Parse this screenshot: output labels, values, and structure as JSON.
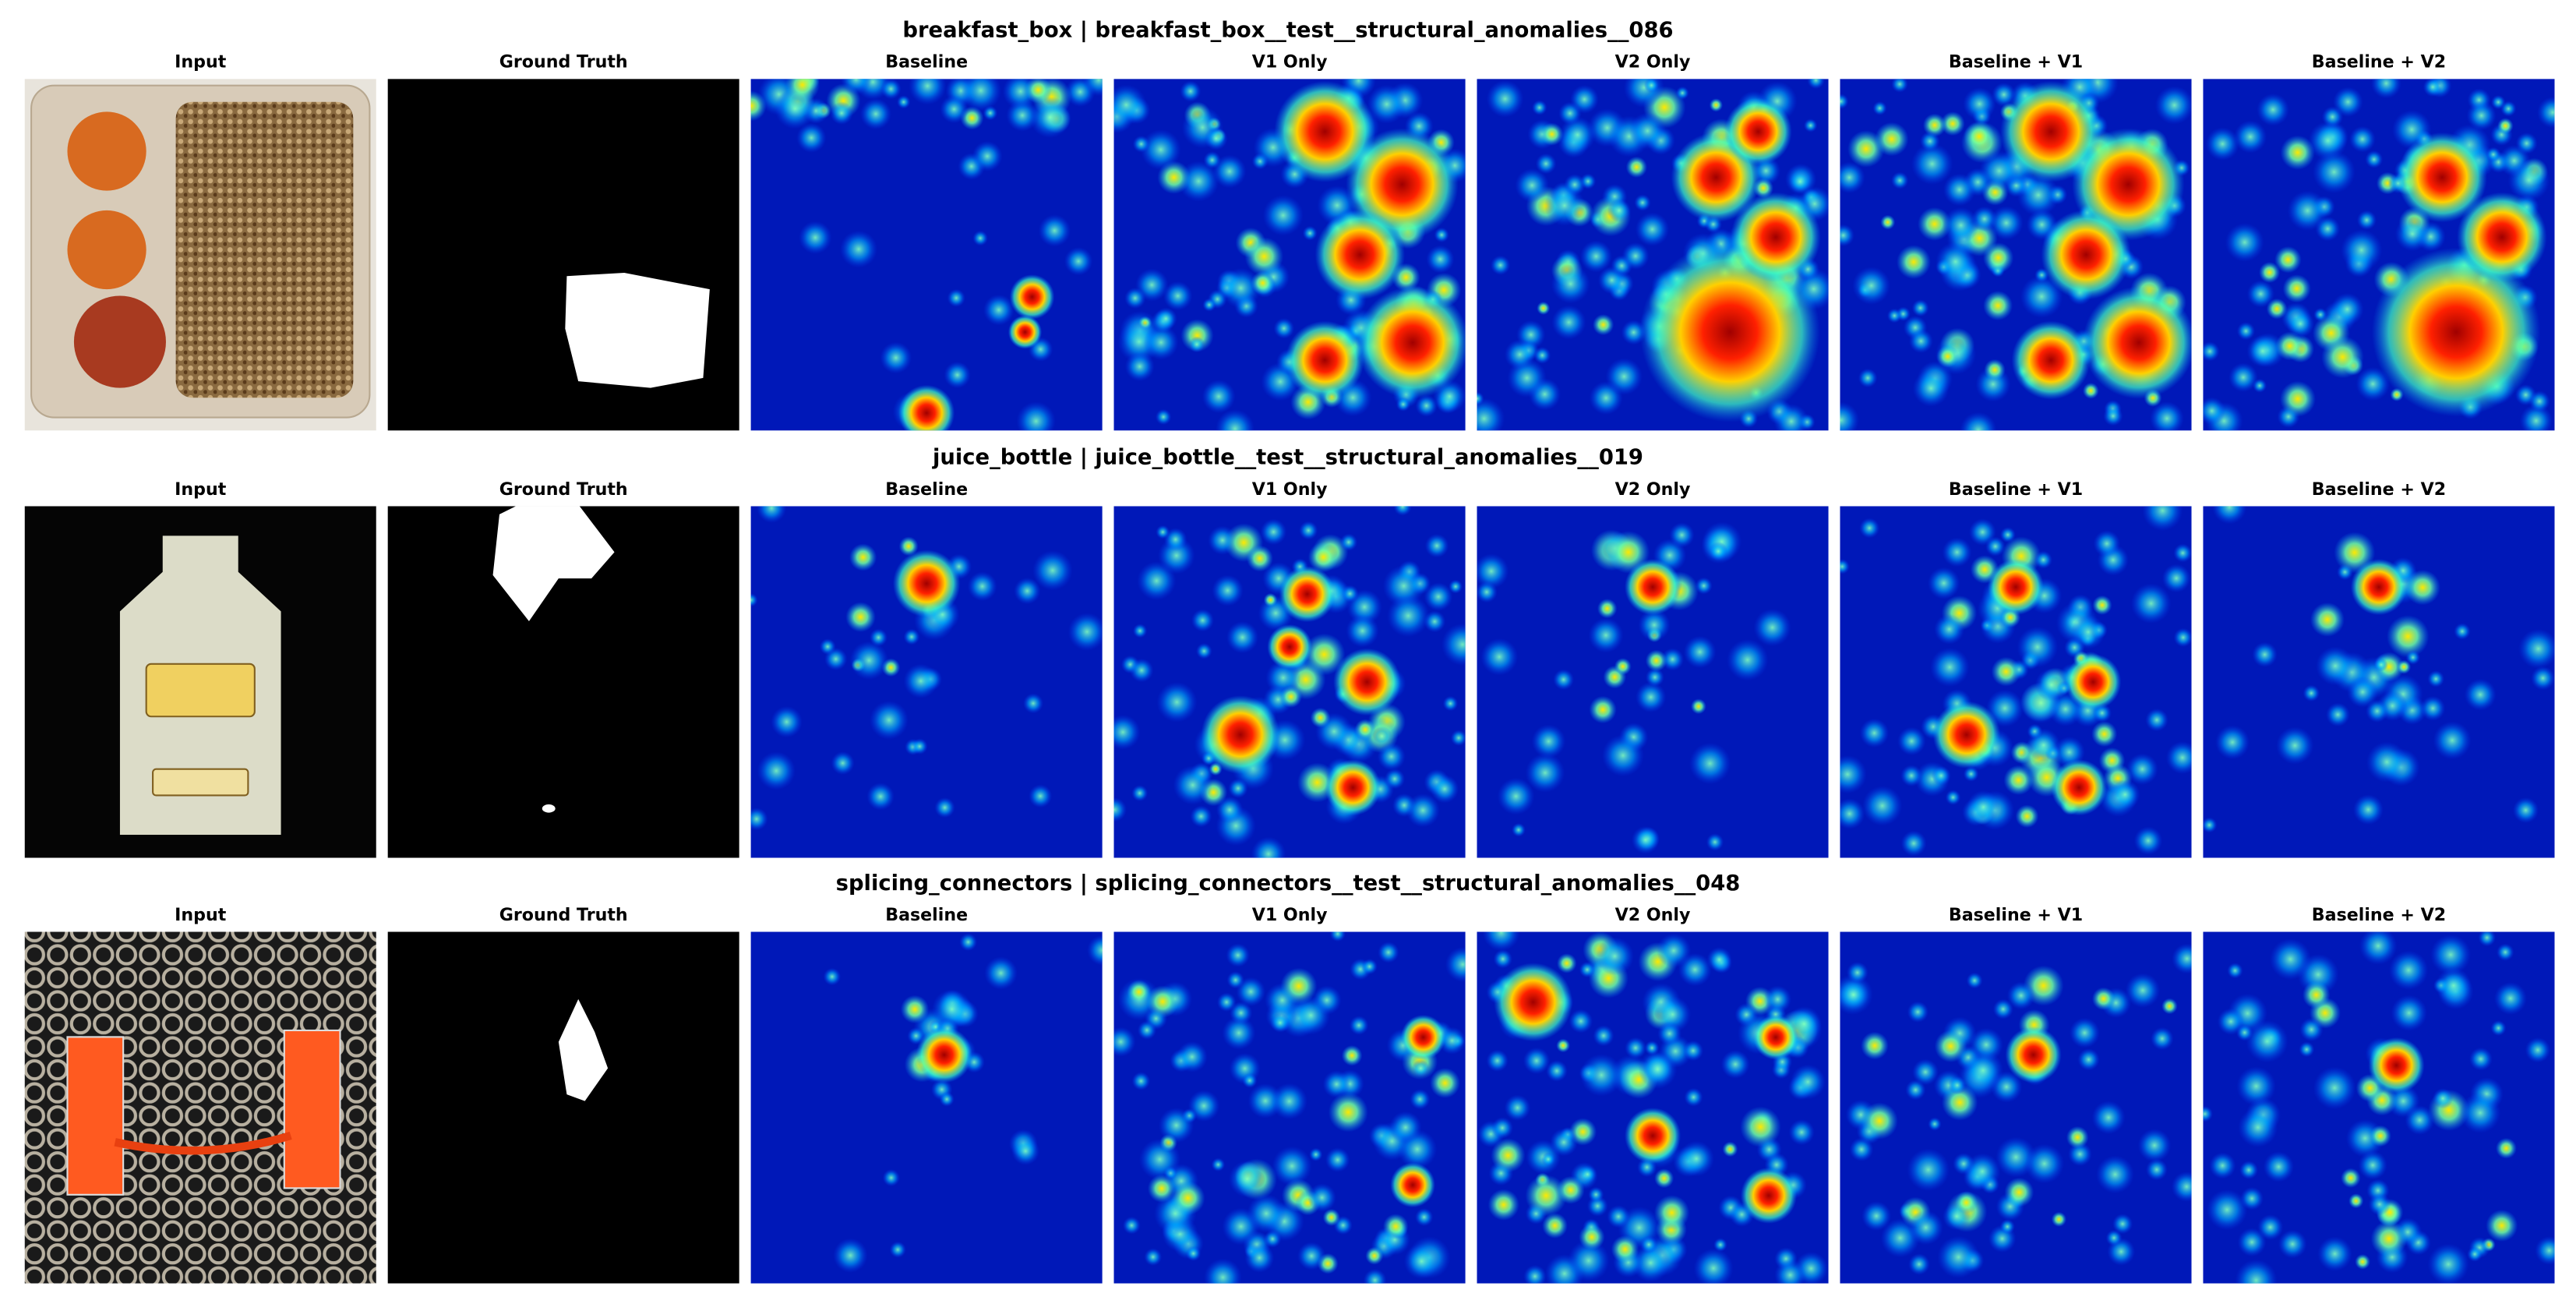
{
  "rows": [
    {
      "title": "breakfast_box | breakfast_box__test__structural_anomalies__086",
      "panel_titles": [
        "Input",
        "Ground Truth",
        "Baseline",
        "V1 Only",
        "V2 Only",
        "Baseline + V1",
        "Baseline + V2"
      ]
    },
    {
      "title": "juice_bottle | juice_bottle__test__structural_anomalies__019",
      "panel_titles": [
        "Input",
        "Ground Truth",
        "Baseline",
        "V1 Only",
        "V2 Only",
        "Baseline + V1",
        "Baseline + V2"
      ]
    },
    {
      "title": "splicing_connectors | splicing_connectors__test__structural_anomalies__048",
      "panel_titles": [
        "Input",
        "Ground Truth",
        "Baseline",
        "V1 Only",
        "V2 Only",
        "Baseline + V1",
        "Baseline + V2"
      ]
    }
  ]
}
